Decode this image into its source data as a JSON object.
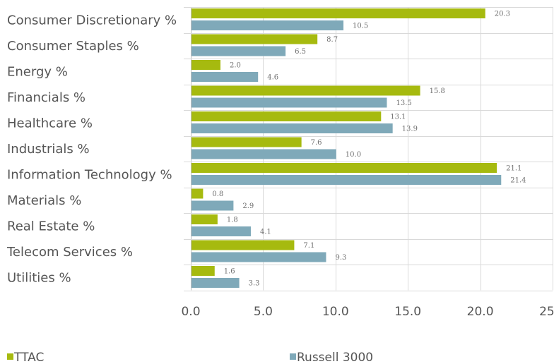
{
  "chart_data": {
    "type": "bar",
    "orientation": "horizontal",
    "categories": [
      "Consumer Discretionary %",
      "Consumer Staples %",
      "Energy %",
      "Financials %",
      "Healthcare %",
      "Industrials %",
      "Information Technology %",
      "Materials %",
      "Real Estate %",
      "Telecom Services %",
      "Utilities %"
    ],
    "series": [
      {
        "name": "TTAC",
        "color": "#a6ba0f",
        "values": [
          20.3,
          8.7,
          2.0,
          15.8,
          13.1,
          7.6,
          21.1,
          0.8,
          1.8,
          7.1,
          1.6
        ],
        "labels": [
          "20.3",
          "8.7",
          "2.0",
          "15.8",
          "13.1",
          "7.6",
          "21.1",
          "0.8",
          "1.8",
          "7.1",
          "1.6"
        ]
      },
      {
        "name": "Russell 3000",
        "color": "#7fa9b9",
        "values": [
          10.5,
          6.5,
          4.6,
          13.5,
          13.9,
          10.0,
          21.4,
          2.9,
          4.1,
          9.3,
          3.3
        ],
        "labels": [
          "10.5",
          "6.5",
          "4.6",
          "13.5",
          "13.9",
          "10.0",
          "21.4",
          "2.9",
          "4.1",
          "9.3",
          "3.3"
        ]
      }
    ],
    "xlim": [
      0,
      25
    ],
    "xticks": [
      0,
      5,
      10,
      15,
      20,
      25
    ],
    "xtick_labels": [
      "0.0",
      "5.0",
      "10.0",
      "15.0",
      "20.0",
      "25.0"
    ],
    "grid": "vertical",
    "legend_position": "bottom",
    "title": "",
    "xlabel": "",
    "ylabel": ""
  }
}
